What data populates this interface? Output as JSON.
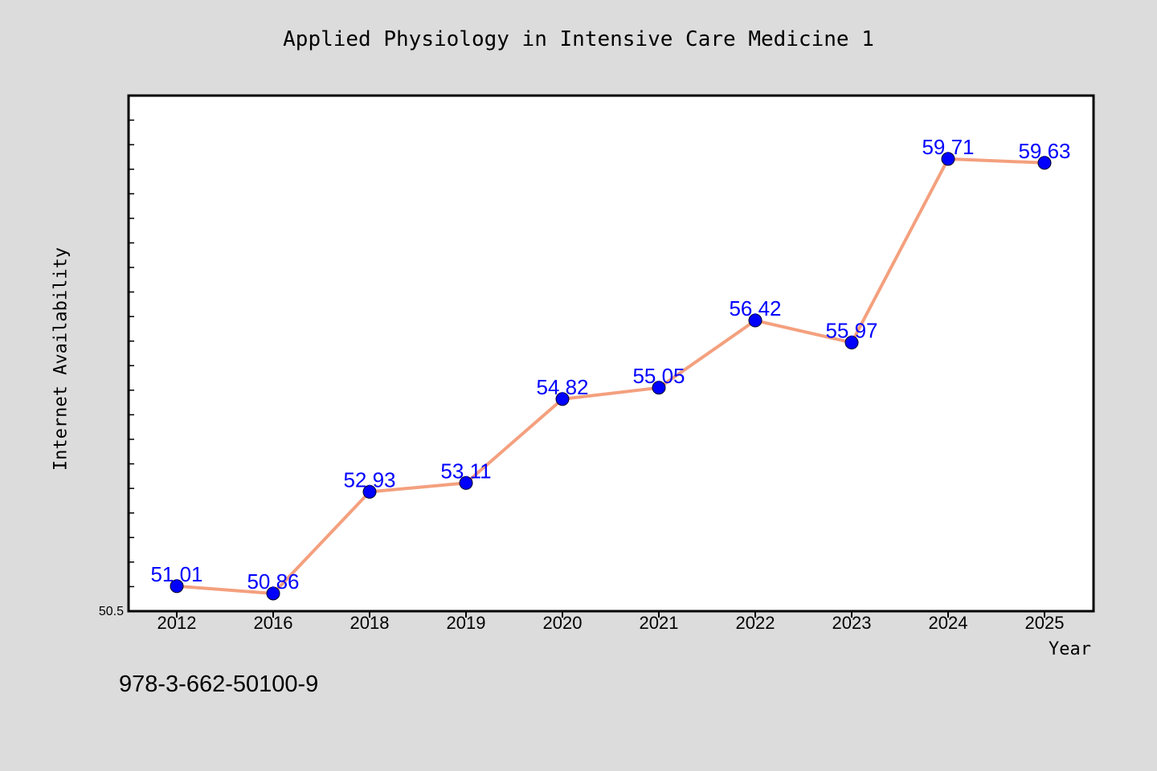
{
  "page": {
    "isbn": "978-3-662-50100-9",
    "background": "#dcdcdc"
  },
  "chart_data": {
    "type": "line",
    "title": "Applied Physiology in Intensive Care Medicine 1",
    "xlabel": "Year",
    "ylabel": "Internet Availability",
    "categories": [
      "2012",
      "2016",
      "2018",
      "2019",
      "2020",
      "2021",
      "2022",
      "2023",
      "2024",
      "2025"
    ],
    "series": [
      {
        "values": [
          51.01,
          50.86,
          52.93,
          53.11,
          54.82,
          55.05,
          56.42,
          55.97,
          59.71,
          59.63
        ],
        "data_labels": [
          "51.01",
          "50.86",
          "52.93",
          "53.11",
          "54.82",
          "55.05",
          "56.42",
          "55.97",
          "59.71",
          "59.63"
        ],
        "line_color": "#f4a07e",
        "marker_color": "#0000ff",
        "label_color": "#0000ff"
      }
    ],
    "ylim": [
      50.5,
      61.0
    ],
    "y_tick_label": "50.5",
    "grid": false,
    "legend": "none",
    "plot_background": "#ffffff"
  }
}
